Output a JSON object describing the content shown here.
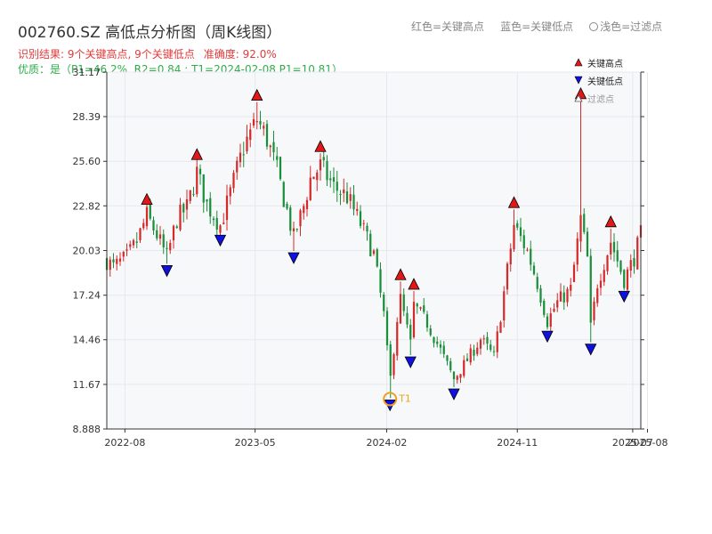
{
  "header": {
    "title": "002760.SZ 高低点分析图（周K线图）",
    "legend_red": "红色=关键高点",
    "legend_blue": "蓝色=关键低点",
    "legend_filtered": "浅色=过滤点",
    "result": "识别结果: 9个关键高点, 9个关键低点",
    "accuracy": "准确度: 92.0%",
    "quality": "优质：是（P1=46.2%, R2=0.84 ; T1=2024-02-08 P1=10.81）"
  },
  "colors": {
    "up": "#d42a2a",
    "down": "#1a8f3a",
    "high_marker": "#e01818",
    "low_marker": "#1010e0",
    "t1_marker": "#f0a020",
    "grid": "#e6e8ee",
    "plot_bg": "#f7f8fa"
  },
  "chart_data": {
    "type": "candlestick",
    "x_range": [
      "2022-06-24",
      "2025-07-18"
    ],
    "y_range": [
      8.888,
      31.17
    ],
    "x_ticks": [
      {
        "date": "2022-08-01",
        "label": "2022-08"
      },
      {
        "date": "2023-05-01",
        "label": "2023-05"
      },
      {
        "date": "2024-02-01",
        "label": "2024-02"
      },
      {
        "date": "2024-11-01",
        "label": "2024-11"
      },
      {
        "date": "2025-07-01",
        "label": "2025-07"
      },
      {
        "date": "2025-08-01",
        "label": "2025-08"
      }
    ],
    "y_ticks": [
      8.888,
      11.67,
      14.46,
      17.24,
      20.03,
      22.82,
      25.6,
      28.39,
      31.17
    ],
    "y_tick_labels": [
      "8.888",
      "11.67",
      "14.46",
      "17.24",
      "20.03",
      "22.82",
      "25.60",
      "28.39",
      "31.17"
    ],
    "marker_legend": {
      "high": "关键高点",
      "low": "关键低点",
      "filtered": "过滤点"
    },
    "key_highs": [
      {
        "date": "2022-09-16",
        "price": 22.8
      },
      {
        "date": "2022-12-30",
        "price": 25.6
      },
      {
        "date": "2023-05-05",
        "price": 29.3
      },
      {
        "date": "2023-09-15",
        "price": 26.1
      },
      {
        "date": "2024-03-01",
        "price": 18.1
      },
      {
        "date": "2024-03-29",
        "price": 17.5
      },
      {
        "date": "2024-10-25",
        "price": 22.6
      },
      {
        "date": "2025-03-14",
        "price": 29.4
      },
      {
        "date": "2025-05-16",
        "price": 21.4
      }
    ],
    "key_lows": [
      {
        "date": "2022-10-28",
        "price": 19.2
      },
      {
        "date": "2023-02-17",
        "price": 21.1
      },
      {
        "date": "2023-07-21",
        "price": 20.0
      },
      {
        "date": "2024-02-08",
        "price": 10.81
      },
      {
        "date": "2024-03-22",
        "price": 13.5
      },
      {
        "date": "2024-06-21",
        "price": 11.5
      },
      {
        "date": "2025-01-03",
        "price": 15.1
      },
      {
        "date": "2025-04-04",
        "price": 14.3
      },
      {
        "date": "2025-06-13",
        "price": 17.6
      }
    ],
    "t1": {
      "date": "2024-02-08",
      "price": 10.81,
      "label": "T1"
    },
    "path": [
      [
        "2022-06-24",
        19.4
      ],
      [
        "2022-07-08",
        19.0
      ],
      [
        "2022-08-05",
        19.6
      ],
      [
        "2022-08-26",
        20.6
      ],
      [
        "2022-09-16",
        22.2
      ],
      [
        "2022-10-07",
        21.0
      ],
      [
        "2022-10-28",
        19.6
      ],
      [
        "2022-11-18",
        22.0
      ],
      [
        "2022-12-09",
        22.7
      ],
      [
        "2022-12-30",
        24.9
      ],
      [
        "2023-01-20",
        22.9
      ],
      [
        "2023-02-17",
        21.6
      ],
      [
        "2023-03-10",
        23.6
      ],
      [
        "2023-04-07",
        26.5
      ],
      [
        "2023-05-05",
        28.2
      ],
      [
        "2023-05-26",
        27.0
      ],
      [
        "2023-06-16",
        25.0
      ],
      [
        "2023-07-07",
        22.5
      ],
      [
        "2023-07-21",
        20.8
      ],
      [
        "2023-08-11",
        22.8
      ],
      [
        "2023-08-25",
        24.5
      ],
      [
        "2023-09-15",
        25.3
      ],
      [
        "2023-10-13",
        24.0
      ],
      [
        "2023-11-10",
        23.4
      ],
      [
        "2023-12-08",
        21.7
      ],
      [
        "2024-01-05",
        19.8
      ],
      [
        "2024-01-26",
        16.0
      ],
      [
        "2024-02-08",
        11.8
      ],
      [
        "2024-02-23",
        15.8
      ],
      [
        "2024-03-01",
        17.0
      ],
      [
        "2024-03-22",
        14.2
      ],
      [
        "2024-03-29",
        16.6
      ],
      [
        "2024-04-26",
        15.5
      ],
      [
        "2024-05-24",
        13.8
      ],
      [
        "2024-06-21",
        12.0
      ],
      [
        "2024-07-19",
        13.2
      ],
      [
        "2024-08-16",
        14.5
      ],
      [
        "2024-09-13",
        13.4
      ],
      [
        "2024-09-27",
        16.0
      ],
      [
        "2024-10-25",
        21.6
      ],
      [
        "2024-11-22",
        20.0
      ],
      [
        "2024-12-13",
        18.0
      ],
      [
        "2025-01-03",
        15.6
      ],
      [
        "2025-01-24",
        16.8
      ],
      [
        "2025-02-21",
        17.6
      ],
      [
        "2025-03-07",
        20.5
      ],
      [
        "2025-03-14",
        22.0
      ],
      [
        "2025-03-28",
        19.5
      ],
      [
        "2025-04-04",
        15.2
      ],
      [
        "2025-04-18",
        18.0
      ],
      [
        "2025-05-16",
        20.6
      ],
      [
        "2025-06-13",
        18.2
      ],
      [
        "2025-07-04",
        19.6
      ],
      [
        "2025-07-18",
        21.0
      ]
    ]
  }
}
